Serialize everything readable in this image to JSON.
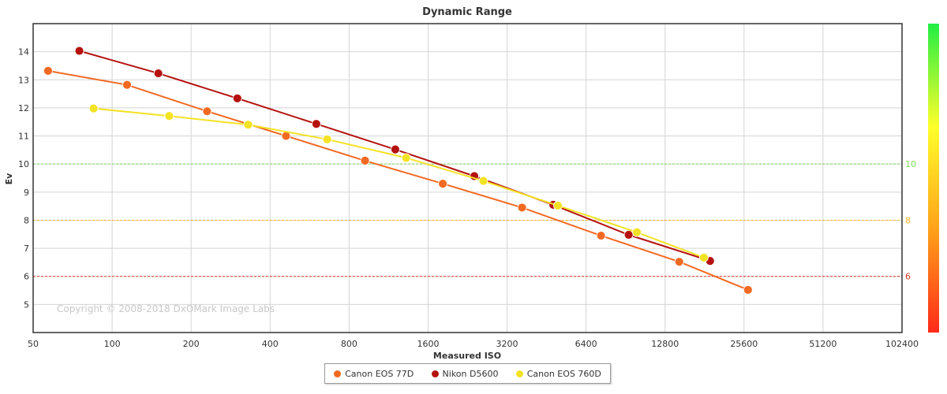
{
  "chart_data": {
    "type": "line",
    "title": "Dynamic Range",
    "xlabel": "Measured ISO",
    "ylabel": "Ev",
    "x_scale": "log2",
    "x_ticks": [
      "50",
      "100",
      "200",
      "400",
      "800",
      "1600",
      "3200",
      "6400",
      "12800",
      "25600",
      "51200",
      "102400"
    ],
    "y_ticks": [
      "5",
      "6",
      "7",
      "8",
      "9",
      "10",
      "11",
      "12",
      "13",
      "14"
    ],
    "xlim": [
      50,
      102400
    ],
    "ylim": [
      4,
      15
    ],
    "grid": true,
    "watermark": "Copyright © 2008-2018 DxOMark Image Labs",
    "reference_lines": [
      {
        "y": 10,
        "label": "10",
        "color": "#7ed957"
      },
      {
        "y": 8,
        "label": "8",
        "color": "#f0b429"
      },
      {
        "y": 6,
        "label": "6",
        "color": "#d83a2a"
      }
    ],
    "color_scale": {
      "colors": [
        "#ff2a1a",
        "#ffa21a",
        "#ffff2a",
        "#22ee44"
      ]
    },
    "legend_position": "bottom-center",
    "series": [
      {
        "name": "Canon EOS 77D",
        "color": "#f26a22",
        "points": [
          [
            57,
            13.32
          ],
          [
            114,
            12.82
          ],
          [
            230,
            11.88
          ],
          [
            460,
            11.0
          ],
          [
            920,
            10.12
          ],
          [
            1820,
            9.3
          ],
          [
            3650,
            8.45
          ],
          [
            7300,
            7.45
          ],
          [
            14500,
            6.52
          ],
          [
            26500,
            5.52
          ]
        ]
      },
      {
        "name": "Nikon D5600",
        "color": "#b5120f",
        "points": [
          [
            75,
            14.03
          ],
          [
            150,
            13.23
          ],
          [
            300,
            12.34
          ],
          [
            600,
            11.43
          ],
          [
            1200,
            10.52
          ],
          [
            2400,
            9.57
          ],
          [
            4800,
            8.55
          ],
          [
            9300,
            7.48
          ],
          [
            19000,
            6.55
          ]
        ]
      },
      {
        "name": "Canon EOS 760D",
        "color": "#f4e224",
        "points": [
          [
            85,
            11.98
          ],
          [
            165,
            11.71
          ],
          [
            330,
            11.4
          ],
          [
            660,
            10.88
          ],
          [
            1320,
            10.22
          ],
          [
            2600,
            9.4
          ],
          [
            5000,
            8.52
          ],
          [
            10000,
            7.57
          ],
          [
            18000,
            6.67
          ]
        ]
      }
    ]
  }
}
